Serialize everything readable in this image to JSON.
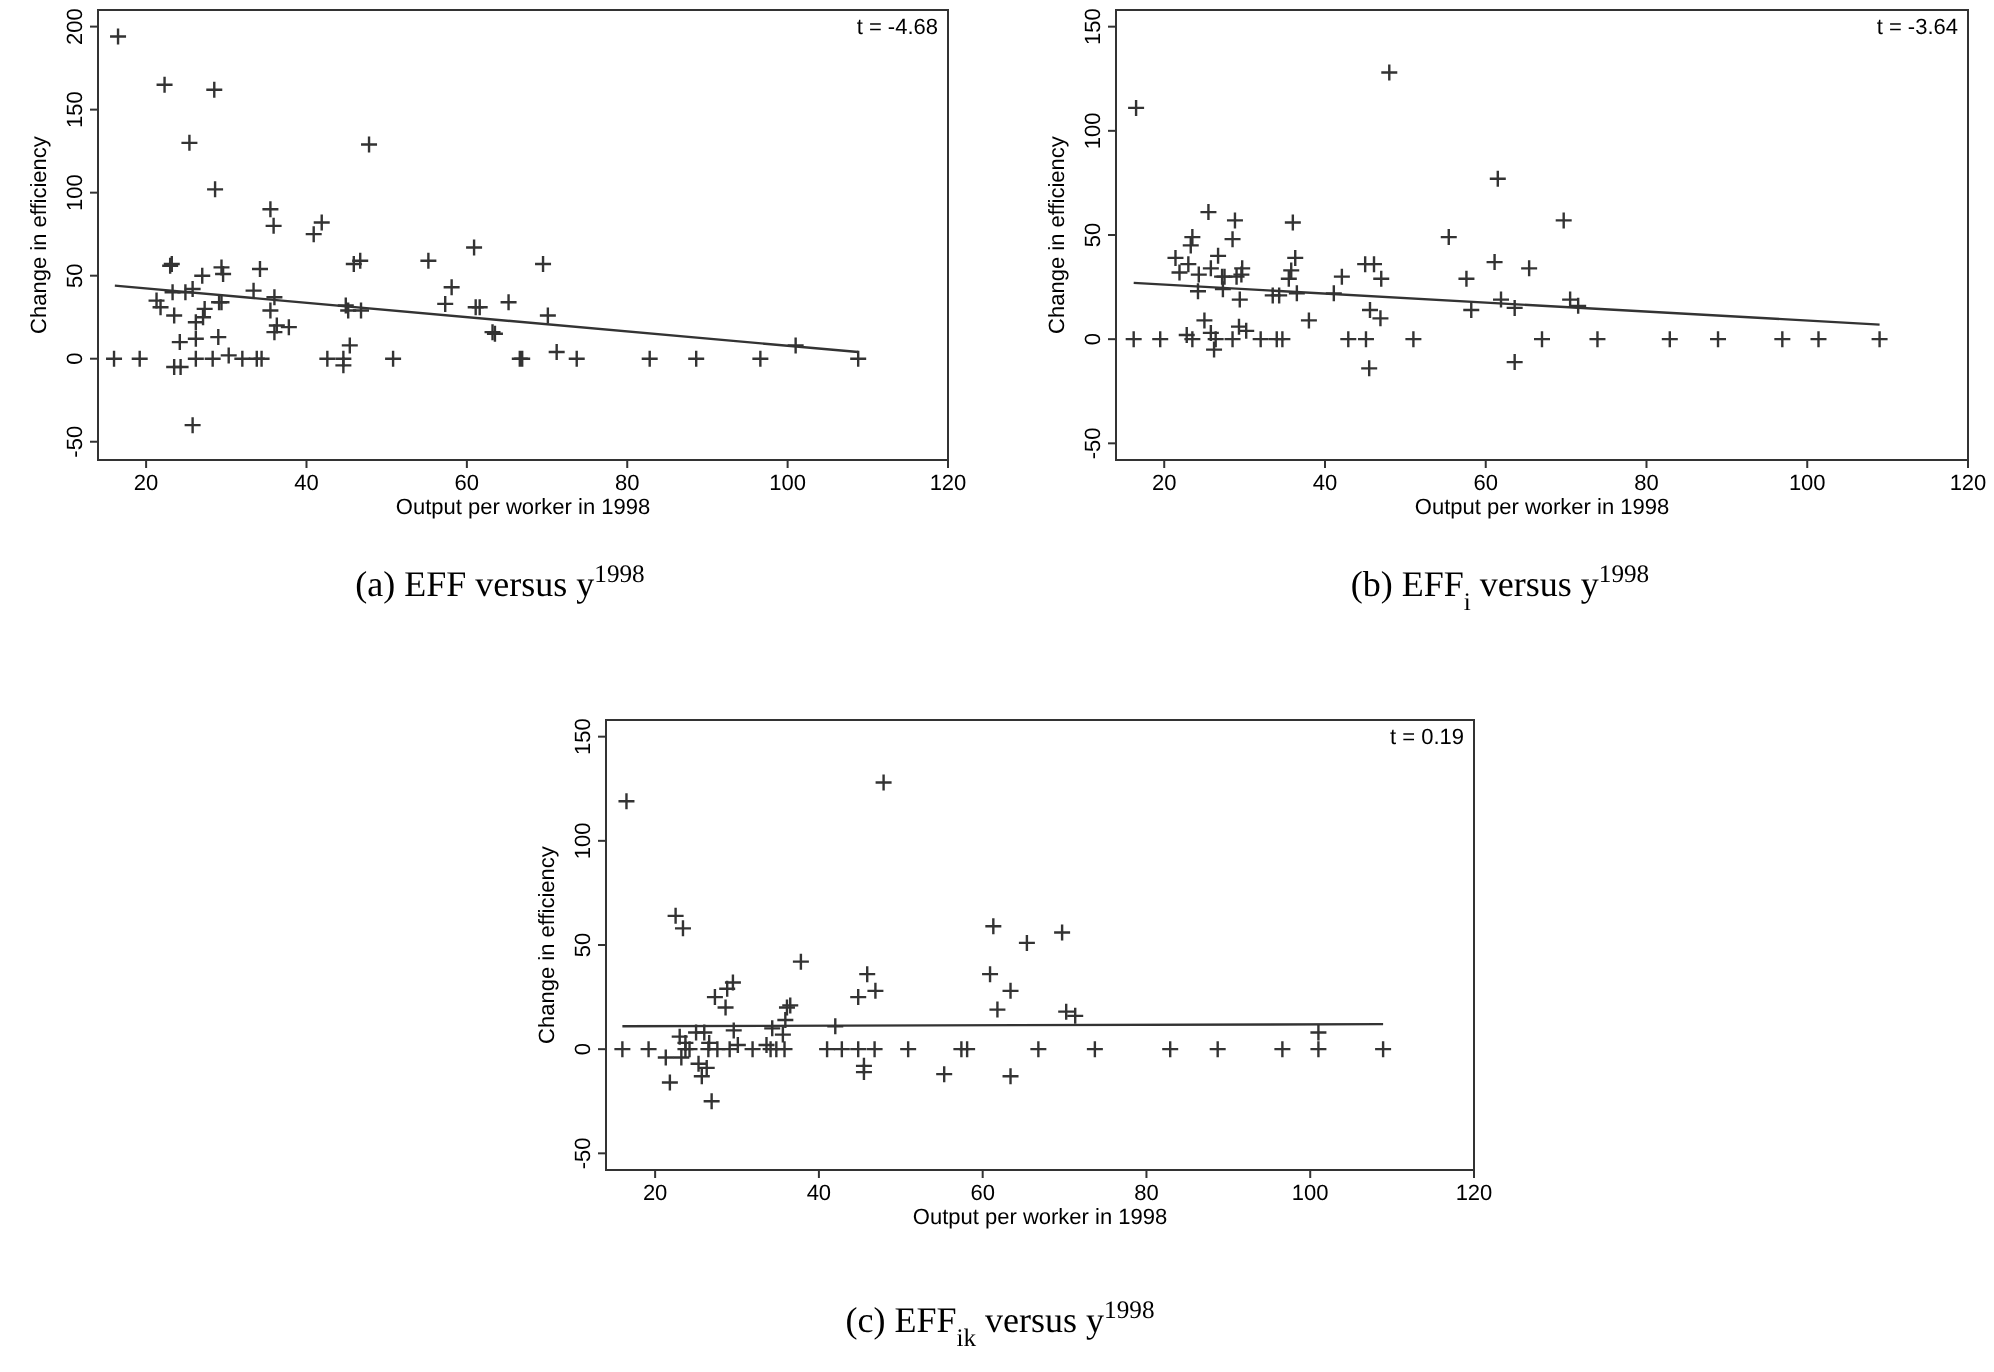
{
  "chart_data": [
    {
      "type": "scatter",
      "title": "(a) EFF versus y$^{1998}$",
      "xlabel": "Output per worker in 1998",
      "ylabel": "Change in efficiency",
      "annotations": [
        "t = -4.68"
      ],
      "xlim": [
        14,
        120
      ],
      "ylim": [
        -61,
        210
      ],
      "xticks": [
        20,
        40,
        60,
        80,
        100,
        120
      ],
      "yticks": [
        -50,
        0,
        50,
        100,
        150,
        200
      ],
      "series": [
        {
          "marker": "cross",
          "color": "#333333",
          "x": [
            16.5,
            16,
            19.2,
            22.3,
            28.5,
            25.4,
            28.6,
            21.3,
            21.8,
            23,
            23.2,
            23.3,
            23.5,
            23.5,
            24.2,
            24.3,
            24.9,
            25.8,
            25.8,
            26.2,
            26.2,
            26.2,
            27,
            27.3,
            27.1,
            28.3,
            29.1,
            29.4,
            29.6,
            29.4,
            29,
            30.3,
            32,
            33.4,
            34.2,
            33.8,
            34.4,
            35.5,
            35.9,
            35.5,
            36,
            36.3,
            36,
            37.8,
            40.9,
            41.9,
            42.6,
            44.6,
            44.6,
            44.9,
            45.2,
            45.4,
            45.9,
            46.7,
            46.8,
            47.8,
            50.8,
            55.2,
            57.3,
            58.1,
            60.9,
            61.1,
            61.6,
            63.2,
            63.5,
            65.2,
            66.6,
            66.9,
            69.5,
            70.1,
            71.2,
            73.7,
            82.8,
            88.6,
            96.6,
            101,
            108.8
          ],
          "values": [
            194,
            0,
            0,
            165,
            162,
            130,
            102,
            35,
            31,
            56,
            57,
            40,
            26,
            -5,
            10,
            -5,
            40,
            42,
            -40,
            22,
            0,
            12,
            50,
            30,
            25,
            0,
            34,
            55,
            51,
            34,
            13,
            2,
            0,
            41,
            54,
            0,
            0,
            90,
            80,
            29,
            37,
            20,
            16,
            19,
            75,
            82,
            0,
            0,
            -4,
            32,
            29,
            8,
            57,
            59,
            29,
            129,
            0,
            59,
            33,
            43,
            67,
            31,
            31,
            16,
            15,
            34,
            0,
            0,
            57,
            26,
            4,
            0,
            0,
            0,
            0,
            8,
            0
          ]
        },
        {
          "type": "line",
          "color": "#333333",
          "x": [
            16.1,
            108.8
          ],
          "values": [
            44,
            4
          ]
        }
      ]
    },
    {
      "type": "scatter",
      "title": "(b) EFF$_{i}$ versus y$^{1998}$",
      "xlabel": "Output per worker in 1998",
      "ylabel": "Change in efficiency",
      "annotations": [
        "t = -3.64"
      ],
      "xlim": [
        14,
        120
      ],
      "ylim": [
        -58,
        158
      ],
      "xticks": [
        20,
        40,
        60,
        80,
        100,
        120
      ],
      "yticks": [
        -50,
        0,
        50,
        100,
        150
      ],
      "series": [
        {
          "marker": "cross",
          "color": "#333333",
          "x": [
            16.5,
            16.2,
            19.5,
            21.4,
            21.9,
            25.5,
            23.5,
            23.3,
            23,
            24.3,
            24.2,
            25,
            22.8,
            23.5,
            25.8,
            26.7,
            25.8,
            26.2,
            26.4,
            27.2,
            27.3,
            27.5,
            28.5,
            28.8,
            29,
            29.4,
            29.3,
            29.7,
            29.6,
            30.2,
            28.5,
            32,
            33.5,
            34.3,
            34,
            34.7,
            35.5,
            35.8,
            36,
            36.3,
            36.5,
            38,
            41.1,
            42.1,
            42.9,
            45,
            45.1,
            45.5,
            45.6,
            46.1,
            46.9,
            47,
            48,
            51,
            55.4,
            57.6,
            58.2,
            61.1,
            61.5,
            61.9,
            63.6,
            63.6,
            65.4,
            67,
            69.7,
            70.5,
            71.5,
            73.9,
            82.9,
            88.9,
            96.9,
            101.4,
            109
          ],
          "values": [
            111,
            0,
            0,
            39,
            32,
            61,
            49,
            45,
            36,
            31,
            23,
            9,
            2,
            0,
            34,
            40,
            3,
            -5,
            0,
            30,
            24,
            30,
            48,
            57,
            30,
            19,
            6,
            34,
            31,
            4,
            0,
            0,
            21,
            21,
            0,
            0,
            29,
            33,
            56,
            39,
            22,
            9,
            22,
            30,
            0,
            36,
            0,
            -14,
            14,
            36,
            10,
            29,
            128,
            0,
            49,
            29,
            14,
            37,
            77,
            19,
            15,
            -11,
            34,
            0,
            57,
            19,
            16,
            0,
            0,
            0,
            0,
            0,
            0
          ]
        },
        {
          "type": "line",
          "color": "#333333",
          "x": [
            16.2,
            109
          ],
          "values": [
            27,
            7
          ]
        }
      ]
    },
    {
      "type": "scatter",
      "title": "(c) EFF$_{ik}$ versus y$^{1998}$",
      "xlabel": "Output per worker in 1998",
      "ylabel": "Change in efficiency",
      "annotations": [
        "t = 0.19"
      ],
      "xlim": [
        14,
        120
      ],
      "ylim": [
        -58,
        158
      ],
      "xticks": [
        20,
        40,
        60,
        80,
        100,
        120
      ],
      "yticks": [
        -50,
        0,
        50,
        100,
        150
      ],
      "series": [
        {
          "marker": "cross",
          "color": "#333333",
          "x": [
            16.5,
            16,
            19.2,
            21.3,
            21.8,
            22.5,
            23.4,
            23,
            23.2,
            23.7,
            23.7,
            24.2,
            25,
            25.3,
            25.7,
            26,
            26.3,
            26.5,
            26.9,
            27.3,
            27.6,
            26.6,
            28.6,
            28.8,
            29.5,
            29.6,
            29.1,
            30.1,
            31.9,
            33.6,
            34.1,
            34.3,
            34.8,
            35.6,
            35.9,
            36.1,
            36.5,
            35.8,
            37.8,
            41,
            42,
            42.8,
            44.8,
            44.8,
            45.5,
            45.5,
            45.9,
            46.9,
            46.8,
            47.9,
            50.9,
            55.3,
            57.4,
            58.1,
            60.9,
            61.3,
            61.8,
            63.4,
            63.4,
            65.4,
            66.8,
            69.7,
            70.2,
            71.3,
            73.7,
            82.9,
            88.7,
            96.6,
            101,
            101,
            108.9
          ],
          "values": [
            119,
            0,
            0,
            -4,
            -16,
            64,
            58,
            6,
            -4,
            3,
            0,
            0,
            8,
            -7,
            -13,
            8,
            -9,
            0,
            -25,
            25,
            0,
            3,
            20,
            29,
            32,
            9,
            0,
            2,
            0,
            2,
            0,
            10,
            0,
            7,
            14,
            20,
            21,
            0,
            42,
            0,
            11,
            0,
            25,
            0,
            -8,
            -11,
            36,
            28,
            0,
            128,
            0,
            -12,
            0,
            0,
            36,
            59,
            19,
            28,
            -13,
            51,
            0,
            56,
            18,
            16,
            0,
            0,
            0,
            0,
            8,
            0,
            0
          ]
        },
        {
          "type": "line",
          "color": "#333333",
          "x": [
            16,
            108.9
          ],
          "values": [
            11,
            12
          ]
        }
      ]
    }
  ]
}
